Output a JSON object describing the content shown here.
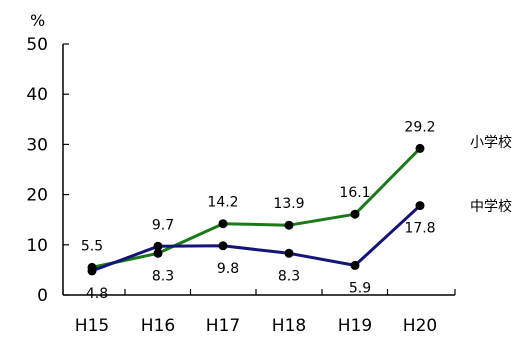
{
  "chart_data": {
    "type": "line",
    "title": "",
    "xlabel": "",
    "ylabel": "%",
    "ylim": [
      0,
      50
    ],
    "yticks": [
      0,
      10,
      20,
      30,
      40,
      50
    ],
    "categories": [
      "H15",
      "H16",
      "H17",
      "H18",
      "H19",
      "H20"
    ],
    "series": [
      {
        "name": "小学校",
        "color": "#1a7a1a",
        "values": [
          5.5,
          8.3,
          14.2,
          13.9,
          16.1,
          29.2
        ],
        "labels": [
          "5.5",
          "8.3",
          "14.2",
          "13.9",
          "16.1",
          "29.2"
        ]
      },
      {
        "name": "中学校",
        "color": "#14147a",
        "values": [
          4.8,
          9.7,
          9.8,
          8.3,
          5.9,
          17.8
        ],
        "labels": [
          "4.8",
          "9.7",
          "9.8",
          "8.3",
          "5.9",
          "17.8"
        ]
      }
    ],
    "grid": false,
    "legend": "inline-right",
    "marker_color": "#000000"
  }
}
